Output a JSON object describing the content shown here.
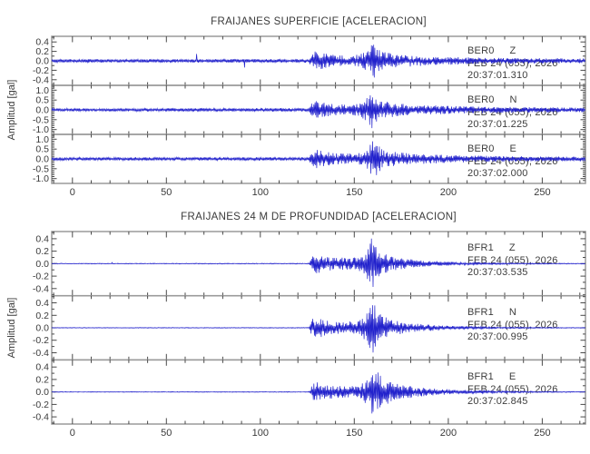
{
  "figure": {
    "background": "#ffffff",
    "trace_color": "#2222cc",
    "frame_color": "#9a9a9a",
    "tick_color": "#4a4a4a",
    "text_color": "#3a3a3a"
  },
  "chart_data": [
    {
      "type": "line",
      "title": "FRAIJANES SUPERFICIE [ACELERACION]",
      "ylabel": "Amplitud [gal]",
      "xlabel": "",
      "xlim": [
        -11,
        273
      ],
      "xticks": [
        0,
        50,
        100,
        150,
        200,
        250
      ],
      "xtick_minor_step": 10,
      "grid": false,
      "legend": "none",
      "series": [
        {
          "station": "BER0",
          "channel": "Z",
          "date": "FEB 24 (055), 2026",
          "time": "20:37:01.310",
          "ylim": [
            -0.5,
            0.5
          ],
          "yticks": [
            0.4,
            0.2,
            0.0,
            -0.2,
            -0.4
          ],
          "ytick_minor_step": 0.1,
          "pre_event_noise_gal": 0.035,
          "event_start_s": 126,
          "peak_time_s": 159.5,
          "peak_amplitude_gal": 0.46,
          "envelope": [
            [
              -11,
              0.035
            ],
            [
              126,
              0.04
            ],
            [
              127.5,
              0.16
            ],
            [
              130,
              0.22
            ],
            [
              134,
              0.16
            ],
            [
              140,
              0.12
            ],
            [
              147,
              0.11
            ],
            [
              153,
              0.14
            ],
            [
              156,
              0.24
            ],
            [
              158.5,
              0.34
            ],
            [
              159.5,
              0.46
            ],
            [
              161,
              0.32
            ],
            [
              164,
              0.22
            ],
            [
              168,
              0.17
            ],
            [
              173,
              0.14
            ],
            [
              180,
              0.12
            ],
            [
              190,
              0.1
            ],
            [
              205,
              0.08
            ],
            [
              225,
              0.065
            ],
            [
              250,
              0.055
            ],
            [
              273,
              0.05
            ]
          ],
          "seed": 1
        },
        {
          "station": "BER0",
          "channel": "N",
          "date": "FEB 24 (055), 2026",
          "time": "20:37:01.225",
          "ylim": [
            -1.2,
            1.2
          ],
          "yticks": [
            1.0,
            0.5,
            0.0,
            -0.5,
            -1.0
          ],
          "ytick_minor_step": 0.1,
          "pre_event_noise_gal": 0.08,
          "event_start_s": 126,
          "peak_time_s": 159.5,
          "peak_amplitude_gal": 1.08,
          "envelope": [
            [
              -11,
              0.08
            ],
            [
              126,
              0.09
            ],
            [
              127.5,
              0.4
            ],
            [
              130,
              0.5
            ],
            [
              134,
              0.38
            ],
            [
              140,
              0.3
            ],
            [
              147,
              0.27
            ],
            [
              153,
              0.33
            ],
            [
              156,
              0.55
            ],
            [
              158.5,
              0.8
            ],
            [
              159.5,
              1.08
            ],
            [
              161,
              0.7
            ],
            [
              164,
              0.5
            ],
            [
              168,
              0.4
            ],
            [
              173,
              0.33
            ],
            [
              180,
              0.28
            ],
            [
              190,
              0.24
            ],
            [
              205,
              0.19
            ],
            [
              225,
              0.16
            ],
            [
              250,
              0.13
            ],
            [
              273,
              0.12
            ]
          ],
          "seed": 2
        },
        {
          "station": "BER0",
          "channel": "E",
          "date": "FEB 24 (055), 2026",
          "time": "20:37:02.000",
          "ylim": [
            -1.2,
            1.2
          ],
          "yticks": [
            1.0,
            0.5,
            0.0,
            -0.5,
            -1.0
          ],
          "ytick_minor_step": 0.1,
          "pre_event_noise_gal": 0.08,
          "event_start_s": 126,
          "peak_time_s": 160.5,
          "peak_amplitude_gal": 1.12,
          "envelope": [
            [
              -11,
              0.08
            ],
            [
              126,
              0.09
            ],
            [
              127.5,
              0.42
            ],
            [
              130,
              0.52
            ],
            [
              134,
              0.4
            ],
            [
              140,
              0.3
            ],
            [
              147,
              0.27
            ],
            [
              153,
              0.3
            ],
            [
              156,
              0.5
            ],
            [
              158,
              0.75
            ],
            [
              160.5,
              1.12
            ],
            [
              162.5,
              0.8
            ],
            [
              165,
              0.5
            ],
            [
              169,
              0.4
            ],
            [
              174,
              0.33
            ],
            [
              181,
              0.28
            ],
            [
              191,
              0.23
            ],
            [
              206,
              0.18
            ],
            [
              226,
              0.15
            ],
            [
              251,
              0.13
            ],
            [
              273,
              0.12
            ]
          ],
          "seed": 3
        }
      ]
    },
    {
      "type": "line",
      "title": "FRAIJANES 24 M DE PROFUNDIDAD [ACELERACION]",
      "ylabel": "Amplitud [gal]",
      "xlabel": "",
      "xlim": [
        -11,
        273
      ],
      "xticks": [
        0,
        50,
        100,
        150,
        200,
        250
      ],
      "xtick_minor_step": 10,
      "grid": false,
      "legend": "none",
      "series": [
        {
          "station": "BFR1",
          "channel": "Z",
          "date": "FEB 24 (055), 2026",
          "time": "20:37:03.535",
          "ylim": [
            -0.5,
            0.5
          ],
          "yticks": [
            0.4,
            0.2,
            0.0,
            -0.2,
            -0.4
          ],
          "ytick_minor_step": 0.1,
          "pre_event_noise_gal": 0.006,
          "event_start_s": 126,
          "peak_time_s": 159.5,
          "peak_amplitude_gal": 0.47,
          "envelope": [
            [
              -11,
              0.006
            ],
            [
              126,
              0.007
            ],
            [
              127.5,
              0.12
            ],
            [
              130,
              0.16
            ],
            [
              134,
              0.12
            ],
            [
              140,
              0.1
            ],
            [
              147,
              0.1
            ],
            [
              153,
              0.12
            ],
            [
              156,
              0.2
            ],
            [
              158.5,
              0.32
            ],
            [
              159.5,
              0.47
            ],
            [
              161,
              0.33
            ],
            [
              164,
              0.2
            ],
            [
              168,
              0.14
            ],
            [
              173,
              0.1
            ],
            [
              180,
              0.07
            ],
            [
              190,
              0.045
            ],
            [
              205,
              0.025
            ],
            [
              225,
              0.013
            ],
            [
              250,
              0.008
            ],
            [
              273,
              0.006
            ]
          ],
          "seed": 4
        },
        {
          "station": "BFR1",
          "channel": "N",
          "date": "FEB 24 (055), 2026",
          "time": "20:37:00.995",
          "ylim": [
            -0.5,
            0.5
          ],
          "yticks": [
            0.4,
            0.2,
            0.0,
            -0.2,
            -0.4
          ],
          "ytick_minor_step": 0.1,
          "pre_event_noise_gal": 0.005,
          "event_start_s": 126,
          "peak_time_s": 159.5,
          "peak_amplitude_gal": 0.52,
          "envelope": [
            [
              -11,
              0.005
            ],
            [
              126,
              0.006
            ],
            [
              127.5,
              0.14
            ],
            [
              130,
              0.18
            ],
            [
              134,
              0.13
            ],
            [
              140,
              0.1
            ],
            [
              147,
              0.1
            ],
            [
              153,
              0.13
            ],
            [
              156,
              0.22
            ],
            [
              158.5,
              0.36
            ],
            [
              159.5,
              0.52
            ],
            [
              161,
              0.36
            ],
            [
              164,
              0.22
            ],
            [
              168,
              0.15
            ],
            [
              173,
              0.11
            ],
            [
              180,
              0.075
            ],
            [
              190,
              0.05
            ],
            [
              205,
              0.028
            ],
            [
              225,
              0.014
            ],
            [
              250,
              0.008
            ],
            [
              273,
              0.006
            ]
          ],
          "seed": 5
        },
        {
          "station": "BFR1",
          "channel": "E",
          "date": "FEB 24 (055), 2026",
          "time": "20:37:02.845",
          "ylim": [
            -0.5,
            0.5
          ],
          "yticks": [
            0.4,
            0.2,
            0.0,
            -0.2,
            -0.4
          ],
          "ytick_minor_step": 0.1,
          "pre_event_noise_gal": 0.005,
          "event_start_s": 126,
          "peak_time_s": 160.5,
          "peak_amplitude_gal": 0.44,
          "envelope": [
            [
              -11,
              0.005
            ],
            [
              126,
              0.006
            ],
            [
              127.5,
              0.13
            ],
            [
              130,
              0.17
            ],
            [
              134,
              0.12
            ],
            [
              140,
              0.1
            ],
            [
              147,
              0.09
            ],
            [
              153,
              0.11
            ],
            [
              156,
              0.2
            ],
            [
              158,
              0.3
            ],
            [
              160.5,
              0.44
            ],
            [
              163,
              0.3
            ],
            [
              166,
              0.22
            ],
            [
              170,
              0.16
            ],
            [
              175,
              0.12
            ],
            [
              181,
              0.09
            ],
            [
              190,
              0.06
            ],
            [
              205,
              0.035
            ],
            [
              225,
              0.017
            ],
            [
              250,
              0.009
            ],
            [
              273,
              0.006
            ]
          ],
          "seed": 6
        }
      ]
    }
  ]
}
